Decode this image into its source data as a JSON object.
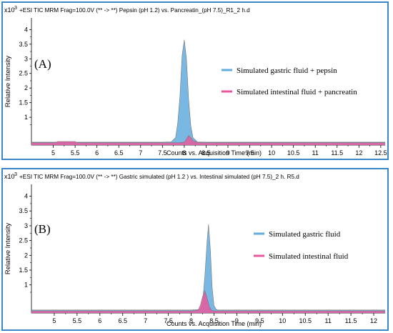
{
  "chart_data": [
    {
      "type": "area",
      "title": "+ESI TIC MRM Frag=100.0V (** -> **) Pepsin (pH 1.2) vs.  Pancreatin_(pH 7.5)_R1_2 h.d",
      "panel_label": "(A)",
      "y_multiplier": "x10",
      "y_multiplier_exp": "3",
      "ylabel": "Relative Intensity",
      "xlabel": "Counts vs. Acquisition Time (min)",
      "xlim": [
        4.5,
        12.6
      ],
      "ylim": [
        0.05,
        4.4
      ],
      "x_ticks": [
        "5",
        "5.5",
        "6",
        "6.5",
        "7",
        "7.5",
        "8",
        "8.5",
        "9",
        "9.5",
        "10",
        "10.5",
        "11",
        "11.5",
        "12",
        "12.5"
      ],
      "y_ticks": [
        "1",
        "1.5",
        "2",
        "2.5",
        "3",
        "3.5",
        "4"
      ],
      "legend_position": "right",
      "series": [
        {
          "name": "Simulated gastric fluid + pepsin",
          "color": "#62acde",
          "x": [
            4.5,
            5.0,
            6.0,
            7.0,
            7.5,
            7.7,
            7.8,
            7.85,
            7.9,
            7.95,
            8.0,
            8.05,
            8.1,
            8.15,
            8.2,
            8.3,
            8.5,
            9.0,
            10.0,
            11.0,
            12.0,
            12.6
          ],
          "values": [
            0.15,
            0.15,
            0.15,
            0.15,
            0.15,
            0.16,
            0.3,
            0.8,
            1.7,
            3.1,
            3.65,
            3.0,
            1.6,
            0.7,
            0.3,
            0.16,
            0.15,
            0.15,
            0.15,
            0.15,
            0.15,
            0.15
          ]
        },
        {
          "name": "Simulated intestinal  fluid + pancreatin",
          "color": "#e8589c",
          "x": [
            4.5,
            5.05,
            5.1,
            5.5,
            5.55,
            6.0,
            7.0,
            7.9,
            8.0,
            8.05,
            8.1,
            8.15,
            8.2,
            8.3,
            8.5,
            9.0,
            10.0,
            11.0,
            12.0,
            12.6
          ],
          "values": [
            0.13,
            0.13,
            0.17,
            0.17,
            0.13,
            0.13,
            0.13,
            0.13,
            0.15,
            0.25,
            0.38,
            0.3,
            0.2,
            0.14,
            0.13,
            0.13,
            0.13,
            0.13,
            0.13,
            0.13
          ]
        }
      ]
    },
    {
      "type": "area",
      "title": "+ESI TIC MRM Frag=100.0V (** -> **) Gastric simulated (pH 1.2 ) vs. Intestinal simulated  (pH 7.5)_2 h. R5.d",
      "panel_label": "(B)",
      "y_multiplier": "x10",
      "y_multiplier_exp": "3",
      "ylabel": "Relative Intensity",
      "xlabel": "Counts vs. Acquisition Time (min)",
      "xlim": [
        4.5,
        12.25
      ],
      "ylim": [
        0.05,
        4.4
      ],
      "x_ticks": [
        "5",
        "5.5",
        "6",
        "6.5",
        "7",
        "7.5",
        "8",
        "8.5",
        "9",
        "9.5",
        "10",
        "10.5",
        "11",
        "11.5",
        "12"
      ],
      "y_ticks": [
        "1",
        "1.5",
        "2",
        "2.5",
        "3",
        "3.5",
        "4"
      ],
      "legend_position": "right",
      "series": [
        {
          "name": "Simulated gastric fluid",
          "color": "#62acde",
          "x": [
            4.5,
            5.0,
            6.0,
            7.0,
            8.0,
            8.2,
            8.25,
            8.3,
            8.35,
            8.38,
            8.42,
            8.46,
            8.5,
            8.55,
            8.6,
            9.0,
            10.0,
            11.0,
            12.0,
            12.25
          ],
          "values": [
            0.15,
            0.15,
            0.15,
            0.15,
            0.15,
            0.17,
            0.4,
            1.3,
            2.5,
            3.05,
            2.2,
            0.9,
            0.3,
            0.17,
            0.15,
            0.15,
            0.15,
            0.15,
            0.15,
            0.15
          ]
        },
        {
          "name": "Simulated intestinal  fluid",
          "color": "#e8589c",
          "x": [
            4.5,
            5.0,
            6.0,
            7.0,
            8.0,
            8.15,
            8.2,
            8.25,
            8.3,
            8.35,
            8.4,
            8.45,
            8.5,
            9.0,
            10.0,
            11.0,
            12.0,
            12.25
          ],
          "values": [
            0.12,
            0.12,
            0.12,
            0.12,
            0.12,
            0.14,
            0.3,
            0.6,
            0.8,
            0.55,
            0.25,
            0.14,
            0.12,
            0.12,
            0.12,
            0.12,
            0.12,
            0.12
          ]
        }
      ]
    }
  ]
}
